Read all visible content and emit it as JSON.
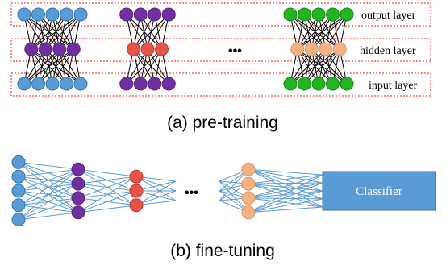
{
  "pretraining": {
    "layer_labels": {
      "output": "output layer",
      "hidden": "hidden layer",
      "input": "input layer"
    },
    "ellipsis": "•••",
    "caption": "(a) pre-training",
    "blocks": [
      {
        "id": "ae1",
        "outer_count": 5,
        "hidden_count": 4,
        "outer_color": "#5b9bd5",
        "outer_stroke": "#2e75b6",
        "hidden_color": "#7030a0",
        "hidden_stroke": "#5a2380"
      },
      {
        "id": "ae2",
        "outer_count": 4,
        "hidden_count": 3,
        "outer_color": "#7030a0",
        "outer_stroke": "#5a2380",
        "hidden_color": "#e5534b",
        "hidden_stroke": "#c0392b"
      },
      {
        "id": "aeN",
        "outer_count": 5,
        "hidden_count": 4,
        "outer_color": "#22b422",
        "outer_stroke": "#148c14",
        "hidden_color": "#f4b183",
        "hidden_stroke": "#e0955d"
      }
    ]
  },
  "finetuning": {
    "layers": [
      {
        "id": "input",
        "count": 5,
        "color": "#5b9bd5",
        "stroke": "#2e75b6"
      },
      {
        "id": "h1",
        "count": 4,
        "color": "#7030a0",
        "stroke": "#5a2380"
      },
      {
        "id": "h2",
        "count": 3,
        "color": "#e5534b",
        "stroke": "#c0392b"
      },
      {
        "id": "hN",
        "count": 4,
        "color": "#f4b183",
        "stroke": "#e0955d"
      }
    ],
    "ellipsis": "•••",
    "classifier_label": "Classifier",
    "caption": "(b) fine-tuning"
  },
  "colors": {
    "dashed_box": "#e32222",
    "edge_black": "#000000",
    "edge_blue": "#5b9bd5",
    "classifier_fill": "#5b9bd5",
    "classifier_text": "#ffffff"
  }
}
